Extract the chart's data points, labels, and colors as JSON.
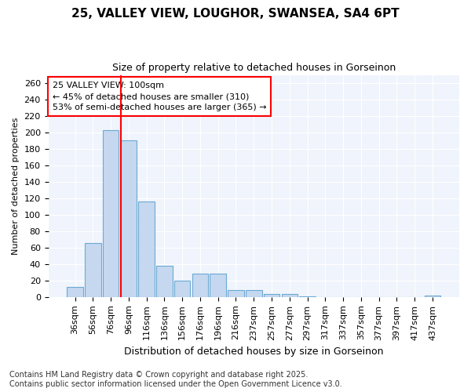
{
  "title_line1": "25, VALLEY VIEW, LOUGHOR, SWANSEA, SA4 6PT",
  "title_line2": "Size of property relative to detached houses in Gorseinon",
  "xlabel": "Distribution of detached houses by size in Gorseinon",
  "ylabel": "Number of detached properties",
  "footer_line1": "Contains HM Land Registry data © Crown copyright and database right 2025.",
  "footer_line2": "Contains public sector information licensed under the Open Government Licence v3.0.",
  "categories": [
    "36sqm",
    "56sqm",
    "76sqm",
    "96sqm",
    "116sqm",
    "136sqm",
    "156sqm",
    "176sqm",
    "196sqm",
    "216sqm",
    "237sqm",
    "257sqm",
    "277sqm",
    "297sqm",
    "317sqm",
    "337sqm",
    "357sqm",
    "377sqm",
    "397sqm",
    "417sqm",
    "437sqm"
  ],
  "values": [
    12,
    66,
    203,
    190,
    116,
    38,
    20,
    28,
    28,
    8,
    8,
    4,
    4,
    1,
    0,
    0,
    0,
    0,
    0,
    0,
    2
  ],
  "bar_color": "#c5d8ef",
  "bar_edge_color": "#6aaad4",
  "background_color": "#ffffff",
  "plot_bg_color": "#f0f4fc",
  "grid_color": "#ffffff",
  "vline_color": "red",
  "vline_x_index": 3,
  "annotation_title": "25 VALLEY VIEW: 100sqm",
  "annotation_line1": "← 45% of detached houses are smaller (310)",
  "annotation_line2": "53% of semi-detached houses are larger (365) →",
  "annotation_box_color": "white",
  "annotation_box_edge_color": "red",
  "ylim": [
    0,
    270
  ],
  "yticks": [
    0,
    20,
    40,
    60,
    80,
    100,
    120,
    140,
    160,
    180,
    200,
    220,
    240,
    260
  ],
  "title_fontsize": 11,
  "subtitle_fontsize": 9,
  "ylabel_fontsize": 8,
  "xlabel_fontsize": 9,
  "tick_fontsize": 8,
  "annot_fontsize": 8,
  "footer_fontsize": 7
}
